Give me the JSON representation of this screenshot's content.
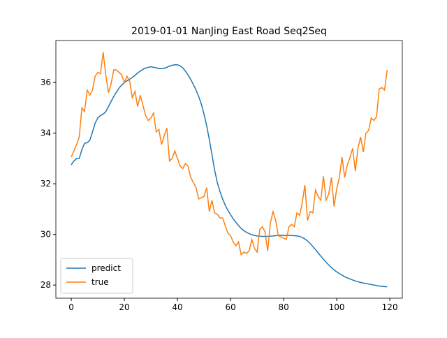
{
  "chart_data": {
    "type": "line",
    "title": "2019-01-01 NanJing East Road Seq2Seq",
    "x": [
      0,
      1,
      2,
      3,
      4,
      5,
      6,
      7,
      8,
      9,
      10,
      11,
      12,
      13,
      14,
      15,
      16,
      17,
      18,
      19,
      20,
      21,
      22,
      23,
      24,
      25,
      26,
      27,
      28,
      29,
      30,
      31,
      32,
      33,
      34,
      35,
      36,
      37,
      38,
      39,
      40,
      41,
      42,
      43,
      44,
      45,
      46,
      47,
      48,
      49,
      50,
      51,
      52,
      53,
      54,
      55,
      56,
      57,
      58,
      59,
      60,
      61,
      62,
      63,
      64,
      65,
      66,
      67,
      68,
      69,
      70,
      71,
      72,
      73,
      74,
      75,
      76,
      77,
      78,
      79,
      80,
      81,
      82,
      83,
      84,
      85,
      86,
      87,
      88,
      89,
      90,
      91,
      92,
      93,
      94,
      95,
      96,
      97,
      98,
      99,
      100,
      101,
      102,
      103,
      104,
      105,
      106,
      107,
      108,
      109,
      110,
      111,
      112,
      113,
      114,
      115,
      116,
      117,
      118,
      119
    ],
    "series": [
      {
        "name": "predict",
        "color": "#1f77b4",
        "values": [
          32.75,
          32.9,
          33.0,
          33.0,
          33.35,
          33.6,
          33.62,
          33.72,
          34.05,
          34.4,
          34.6,
          34.7,
          34.75,
          34.85,
          35.05,
          35.25,
          35.45,
          35.62,
          35.78,
          35.9,
          36.0,
          36.07,
          36.13,
          36.2,
          36.28,
          36.38,
          36.45,
          36.52,
          36.57,
          36.6,
          36.62,
          36.6,
          36.58,
          36.55,
          36.55,
          36.56,
          36.6,
          36.65,
          36.68,
          36.7,
          36.7,
          36.66,
          36.58,
          36.45,
          36.3,
          36.12,
          35.92,
          35.7,
          35.45,
          35.15,
          34.75,
          34.3,
          33.75,
          33.15,
          32.55,
          32.05,
          31.7,
          31.4,
          31.15,
          30.95,
          30.78,
          30.62,
          30.48,
          30.35,
          30.24,
          30.15,
          30.08,
          30.03,
          29.99,
          29.96,
          29.94,
          29.93,
          29.92,
          29.92,
          29.92,
          29.93,
          29.94,
          29.95,
          29.96,
          29.96,
          29.96,
          29.96,
          29.96,
          29.96,
          29.95,
          29.94,
          29.92,
          29.88,
          29.82,
          29.74,
          29.64,
          29.52,
          29.4,
          29.27,
          29.14,
          29.02,
          28.9,
          28.79,
          28.69,
          28.6,
          28.52,
          28.45,
          28.39,
          28.33,
          28.28,
          28.24,
          28.2,
          28.16,
          28.13,
          28.1,
          28.08,
          28.06,
          28.04,
          28.02,
          28.0,
          27.98,
          27.96,
          27.95,
          27.94,
          27.93
        ]
      },
      {
        "name": "true",
        "color": "#ff7f0e",
        "values": [
          33.05,
          33.3,
          33.55,
          33.85,
          35.0,
          34.85,
          35.7,
          35.5,
          35.7,
          36.25,
          36.4,
          36.35,
          37.2,
          36.3,
          35.6,
          35.95,
          36.5,
          36.5,
          36.4,
          36.3,
          36.0,
          36.25,
          36.05,
          35.4,
          35.65,
          35.05,
          35.5,
          35.1,
          34.7,
          34.5,
          34.6,
          34.8,
          34.05,
          34.15,
          33.55,
          33.9,
          34.2,
          32.9,
          33.0,
          33.3,
          33.0,
          32.7,
          32.6,
          32.8,
          32.7,
          32.25,
          32.05,
          31.85,
          31.4,
          31.45,
          31.5,
          31.85,
          30.9,
          31.35,
          30.85,
          30.8,
          30.65,
          30.65,
          30.35,
          30.05,
          29.95,
          29.7,
          29.55,
          29.7,
          29.2,
          29.3,
          29.25,
          29.35,
          29.8,
          29.45,
          29.3,
          30.2,
          30.3,
          30.1,
          29.35,
          30.45,
          30.9,
          30.55,
          29.95,
          29.9,
          29.85,
          29.8,
          30.3,
          30.4,
          30.3,
          30.85,
          30.75,
          31.25,
          31.95,
          30.55,
          30.9,
          30.85,
          31.75,
          31.5,
          31.35,
          32.3,
          31.35,
          31.6,
          32.25,
          31.1,
          31.8,
          32.25,
          33.05,
          32.25,
          32.75,
          33.05,
          33.4,
          32.5,
          33.4,
          33.85,
          33.25,
          34.0,
          34.1,
          34.6,
          34.5,
          34.65,
          35.75,
          35.8,
          35.7,
          36.5
        ]
      }
    ],
    "xlim": [
      -5.8,
      124.7
    ],
    "xticks": [
      0,
      20,
      40,
      60,
      80,
      100,
      120
    ],
    "ylim": [
      27.48,
      37.66
    ],
    "yticks": [
      28,
      30,
      32,
      34,
      36
    ],
    "legend": "lower left"
  }
}
